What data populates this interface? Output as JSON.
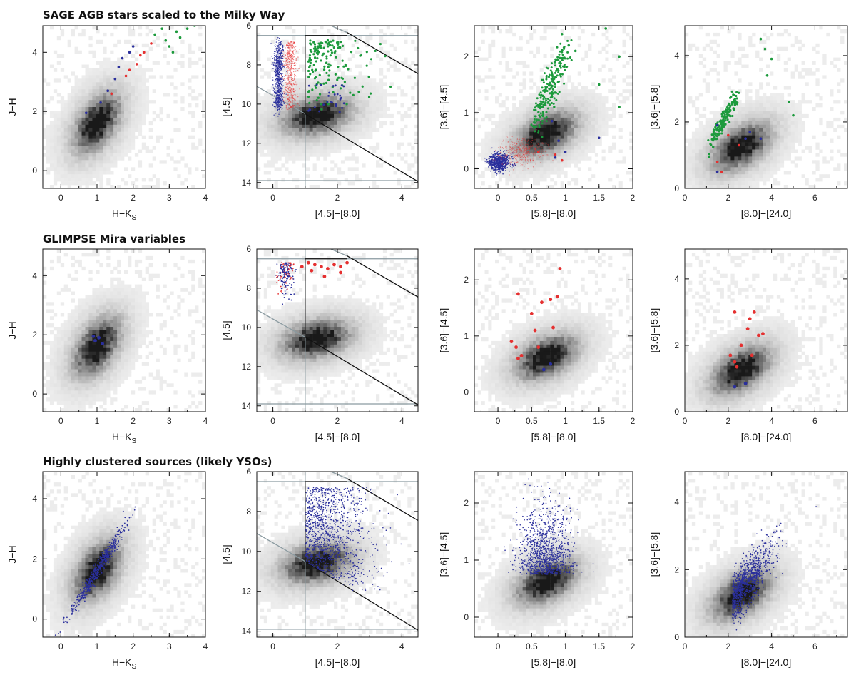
{
  "figure": {
    "row_titles": [
      "SAGE AGB stars scaled to the Milky Way",
      "GLIMPSE Mira variables",
      "Highly clustered sources (likely YSOs)"
    ]
  },
  "colors": {
    "blue": "#2a2f9c",
    "red": "#e53030",
    "green": "#1c9a3c",
    "guide_gray": "#8a9aa0",
    "guide_black": "#111111"
  },
  "panel_types": [
    {
      "id": "jh-hk",
      "xlabel": "H−K",
      "xlabel_sub": "S",
      "ylabel": "J−H",
      "xlim": [
        -0.5,
        4
      ],
      "ylim": [
        -0.6,
        4.9
      ],
      "xticks": [
        0,
        1,
        2,
        3,
        4
      ],
      "yticks": [
        0,
        2,
        4
      ],
      "density_center": [
        1.0,
        1.6
      ],
      "density_direction": [
        1,
        1.95
      ]
    },
    {
      "id": "m45-c4580",
      "xlabel": "[4.5]−[8.0]",
      "ylabel": "[4.5]",
      "xlim": [
        -0.5,
        4.5
      ],
      "ylim": [
        14.3,
        6
      ],
      "y_inverted": true,
      "xticks": [
        0,
        2,
        4
      ],
      "yticks": [
        6,
        8,
        10,
        12,
        14
      ],
      "density_center": [
        1.35,
        10.6
      ],
      "density_direction": [
        1,
        0.2
      ],
      "guides": {
        "gray_lines": [
          [
            [
              1,
              6
            ],
            [
              1,
              14.3
            ]
          ],
          [
            [
              -0.5,
              6.5
            ],
            [
              4.5,
              6.5
            ]
          ],
          [
            [
              -0.5,
              13.9
            ],
            [
              4.5,
              13.9
            ]
          ],
          [
            [
              -0.5,
              9.1
            ],
            [
              1,
              10.5
            ]
          ],
          [
            [
              1.8,
              6
            ],
            [
              2.3,
              6.35
            ]
          ]
        ],
        "black_lines": [
          [
            [
              1,
              6.5
            ],
            [
              1,
              10.5
            ]
          ],
          [
            [
              1,
              10.5
            ],
            [
              4.5,
              13.95
            ]
          ],
          [
            [
              1,
              6.5
            ],
            [
              2.3,
              6.5
            ]
          ],
          [
            [
              2.3,
              6.35
            ],
            [
              4.5,
              8.45
            ]
          ]
        ]
      }
    },
    {
      "id": "c3645-c5880",
      "xlabel": "[5.8]−[8.0]",
      "ylabel": "[3.6]−[4.5]",
      "xlim": [
        -0.35,
        2
      ],
      "ylim": [
        -0.35,
        2.55
      ],
      "xticks": [
        0,
        0.5,
        1,
        1.5,
        2
      ],
      "xtick_labels": [
        "0",
        "0.5",
        "1",
        "1.5",
        "2"
      ],
      "yticks": [
        0,
        1,
        2
      ],
      "density_center": [
        0.72,
        0.62
      ],
      "density_direction": [
        1,
        0.6
      ]
    },
    {
      "id": "c3658-c80240",
      "xlabel": "[8.0]−[24.0]",
      "ylabel": "[3.6]−[5.8]",
      "xlim": [
        0,
        7.5
      ],
      "ylim": [
        0,
        4.9
      ],
      "xticks": [
        0,
        2,
        4,
        6
      ],
      "yticks": [
        0,
        2,
        4
      ],
      "density_center": [
        2.6,
        1.25
      ],
      "density_direction": [
        1,
        0.45
      ]
    }
  ],
  "chart_data": [
    {
      "row": 0,
      "type": "scatter",
      "description_series": [
        {
          "color": "blue",
          "jh_hk": [
            [
              0.7,
              1.95
            ],
            [
              1.1,
              2.3
            ],
            [
              1.3,
              2.7
            ],
            [
              1.5,
              3.1
            ],
            [
              1.6,
              3.5
            ],
            [
              1.7,
              3.8
            ],
            [
              1.9,
              4.0
            ],
            [
              2.0,
              4.2
            ]
          ],
          "c3645_c5880": [
            [
              0.9,
              0.5
            ],
            [
              1.0,
              0.3
            ],
            [
              0.8,
              0.85
            ],
            [
              1.5,
              0.55
            ],
            [
              0.85,
              0.2
            ]
          ],
          "c3658_c80240": [
            [
              1.5,
              1.9
            ],
            [
              3.0,
              1.7
            ],
            [
              2.8,
              1.5
            ],
            [
              3.5,
              1.5
            ],
            [
              1.5,
              0.5
            ]
          ]
        },
        {
          "color": "red",
          "jh_hk": [
            [
              1.4,
              2.6
            ],
            [
              1.8,
              3.2
            ],
            [
              2.1,
              3.6
            ],
            [
              2.3,
              4.0
            ],
            [
              2.5,
              4.3
            ],
            [
              2.2,
              3.9
            ],
            [
              1.9,
              3.4
            ]
          ],
          "c3645_c5880": [
            [
              0.6,
              0.3
            ],
            [
              0.85,
              0.25
            ],
            [
              0.95,
              0.15
            ]
          ],
          "c3658_c80240": [
            [
              2.0,
              1.6
            ],
            [
              2.5,
              1.3
            ],
            [
              1.5,
              0.8
            ],
            [
              1.7,
              0.5
            ]
          ]
        },
        {
          "color": "green",
          "jh_hk": [
            [
              2.6,
              4.6
            ],
            [
              2.9,
              4.4
            ],
            [
              3.1,
              4.0
            ],
            [
              3.3,
              4.5
            ],
            [
              3.5,
              4.8
            ],
            [
              3.0,
              4.2
            ],
            [
              3.7,
              4.9
            ],
            [
              2.8,
              4.8
            ],
            [
              3.2,
              4.7
            ]
          ],
          "c3645_c5880": [
            [
              0.95,
              2.4
            ],
            [
              1.05,
              2.2
            ],
            [
              1.15,
              2.1
            ],
            [
              1.6,
              2.5
            ],
            [
              1.8,
              2.0
            ],
            [
              1.5,
              1.5
            ],
            [
              1.8,
              1.1
            ]
          ],
          "c3658_c80240": [
            [
              3.5,
              4.5
            ],
            [
              3.7,
              4.2
            ],
            [
              4.0,
              3.9
            ],
            [
              4.8,
              2.6
            ],
            [
              5.0,
              2.2
            ],
            [
              3.8,
              3.4
            ]
          ]
        }
      ]
    },
    {
      "row": 1,
      "type": "scatter",
      "description_series": [
        {
          "color": "blue",
          "jh_hk": [
            [
              0.95,
              1.8
            ],
            [
              1.05,
              1.9
            ],
            [
              1.15,
              1.7
            ],
            [
              0.9,
              1.95
            ]
          ],
          "c3645_c5880": [
            [
              0.68,
              0.4
            ],
            [
              0.78,
              0.5
            ]
          ],
          "c3658_c80240": [
            [
              2.3,
              0.75
            ],
            [
              2.8,
              0.85
            ]
          ]
        },
        {
          "color": "red",
          "c3645_c5880": [
            [
              0.2,
              0.9
            ],
            [
              0.27,
              0.8
            ],
            [
              0.3,
              0.6
            ],
            [
              0.35,
              0.65
            ],
            [
              0.3,
              1.75
            ],
            [
              0.5,
              1.4
            ],
            [
              0.55,
              1.1
            ],
            [
              0.65,
              1.6
            ],
            [
              0.78,
              1.65
            ],
            [
              0.88,
              1.7
            ],
            [
              0.92,
              2.2
            ],
            [
              0.82,
              1.15
            ],
            [
              0.6,
              0.8
            ]
          ],
          "c3658_c80240": [
            [
              2.1,
              1.7
            ],
            [
              2.3,
              1.5
            ],
            [
              2.4,
              1.35
            ],
            [
              2.6,
              2.0
            ],
            [
              2.9,
              2.5
            ],
            [
              3.0,
              2.8
            ],
            [
              3.2,
              3.0
            ],
            [
              3.4,
              2.3
            ],
            [
              3.6,
              2.35
            ],
            [
              3.1,
              1.7
            ],
            [
              2.3,
              3.0
            ]
          ]
        }
      ]
    },
    {
      "row": 2,
      "type": "scatter",
      "description_series": [
        {
          "color": "blue",
          "note_area": "dense blue scatter overlapping grayscale density"
        }
      ]
    }
  ]
}
